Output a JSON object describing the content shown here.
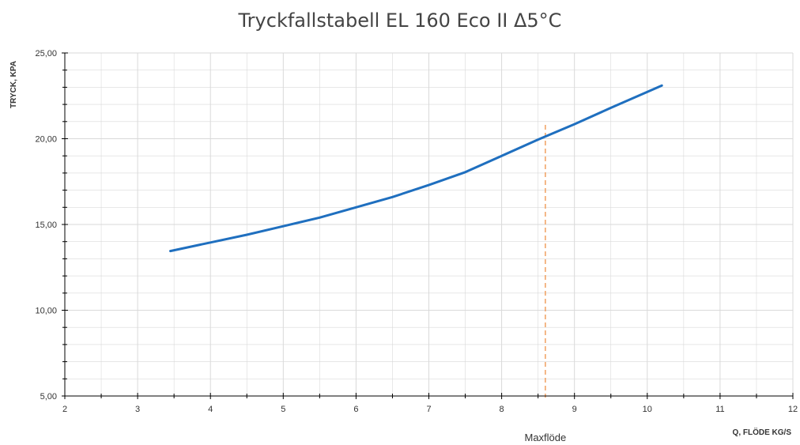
{
  "chart_data": {
    "type": "line",
    "title": "Tryckfallstabell EL 160 Eco II Δ5°C",
    "xlabel": "Q, FLÖDE KG/S",
    "ylabel": "TRYCK, KPA",
    "xlim": [
      2,
      12
    ],
    "ylim": [
      5,
      25
    ],
    "x_ticks": [
      2,
      3,
      4,
      5,
      6,
      7,
      8,
      9,
      10,
      11,
      12
    ],
    "x_tick_labels": [
      "2",
      "3",
      "4",
      "5",
      "6",
      "7",
      "8",
      "9",
      "10",
      "11",
      "12"
    ],
    "y_ticks": [
      5,
      10,
      15,
      20,
      25
    ],
    "y_tick_labels": [
      "5,00",
      "10,00",
      "15,00",
      "20,00",
      "25,00"
    ],
    "grid": true,
    "series": [
      {
        "color": "#1f6fbf",
        "x": [
          3.45,
          4.0,
          4.5,
          5.0,
          5.5,
          6.0,
          6.5,
          7.0,
          7.5,
          8.0,
          8.5,
          9.0,
          9.5,
          10.2
        ],
        "y": [
          13.45,
          13.95,
          14.4,
          14.9,
          15.4,
          16.0,
          16.6,
          17.3,
          18.05,
          19.0,
          19.95,
          20.85,
          21.8,
          23.1
        ]
      }
    ],
    "markers": [
      {
        "label": "Maxflöde",
        "x": 8.6,
        "color": "#f0a060",
        "style": "dashed"
      }
    ],
    "colors": {
      "grid": "#d9d9d9",
      "axis": "#000000"
    }
  }
}
